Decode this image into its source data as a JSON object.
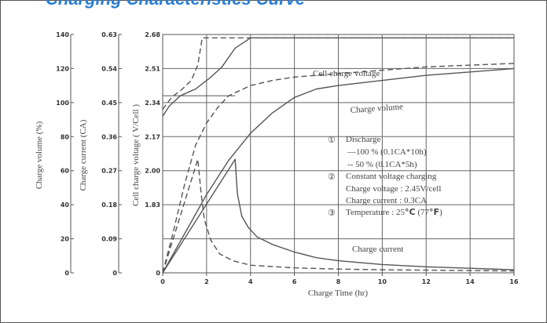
{
  "header": {
    "partial_text": "Charging Characteristics Curve"
  },
  "chart_data": {
    "type": "line",
    "xlabel": "Charge Time (hr)",
    "x_ticks": [
      "0",
      "2",
      "4",
      "6",
      "8",
      "10",
      "12",
      "14",
      "16"
    ],
    "xlim": [
      0,
      16
    ],
    "y_axes": [
      {
        "label": "Charge volume (%)",
        "ticks": [
          "140",
          "120",
          "100",
          "80",
          "60",
          "40",
          "20",
          "0"
        ]
      },
      {
        "label": "Charge current (CA)",
        "ticks": [
          "0.63",
          "0.54",
          "0.45",
          "0.36",
          "0.27",
          "0.18",
          "0.09",
          "0"
        ]
      },
      {
        "label": "Cell charge voltage ( V/Cell )",
        "ticks": [
          "2.68",
          "2.51",
          "2.34",
          "2.17",
          "2.00",
          "1.83",
          "0"
        ]
      }
    ],
    "ylim": [
      0,
      140
    ],
    "grid": true,
    "curve_labels": {
      "voltage": "Cell charge voltage",
      "volume": "Charge volume",
      "current": "Charge current"
    },
    "series": [
      {
        "name": "Cell charge voltage",
        "style": "solid",
        "x": [
          0,
          0.3,
          0.8,
          1.5,
          2.2,
          2.7,
          3.3,
          4,
          16
        ],
        "y": [
          92,
          98,
          104,
          108,
          115,
          121,
          132,
          138,
          138
        ]
      },
      {
        "name": "Cell charge voltage",
        "style": "dashed",
        "x": [
          0,
          0.4,
          0.9,
          1.3,
          1.6,
          1.8,
          16
        ],
        "y": [
          96,
          103,
          108,
          113,
          122,
          138,
          138
        ]
      },
      {
        "name": "Charge volume",
        "style": "solid",
        "x": [
          0,
          1,
          2,
          3,
          4,
          5,
          6,
          7,
          8,
          10,
          12,
          14,
          16
        ],
        "y": [
          0,
          23,
          46,
          66,
          82,
          94,
          103,
          108,
          110,
          113,
          116,
          118,
          120
        ]
      },
      {
        "name": "Charge volume",
        "style": "dashed",
        "x": [
          0,
          0.5,
          1,
          1.5,
          2,
          2.5,
          3,
          4,
          5,
          6,
          8,
          10,
          12,
          14,
          16
        ],
        "y": [
          0,
          25,
          52,
          75,
          88,
          97,
          104,
          110,
          113,
          115,
          117,
          119,
          121,
          122,
          123
        ]
      },
      {
        "name": "Charge current",
        "style": "solid",
        "x": [
          0,
          3.3,
          3.4,
          3.6,
          3.9,
          4.3,
          5,
          6,
          7,
          8,
          10,
          12,
          14,
          16
        ],
        "y": [
          0,
          0.3,
          0.21,
          0.15,
          0.12,
          0.095,
          0.075,
          0.055,
          0.04,
          0.032,
          0.022,
          0.016,
          0.012,
          0.008
        ]
      },
      {
        "name": "Charge current",
        "style": "dashed",
        "x": [
          0,
          1.6,
          1.65,
          1.75,
          1.9,
          2.2,
          2.6,
          3.2,
          4,
          6,
          8,
          10,
          12,
          14,
          16
        ],
        "y": [
          0,
          0.3,
          0.27,
          0.21,
          0.14,
          0.085,
          0.05,
          0.032,
          0.02,
          0.013,
          0.01,
          0.008,
          0.007,
          0.006,
          0.005
        ]
      }
    ],
    "annotations": {
      "n1": "①",
      "l1": "Discharge",
      "l2": "—100 % (0.1CA*10h)",
      "l3": "-- 50  % (0.1CA*5h)",
      "n2": "②",
      "l4": "Constant voltage charging",
      "l5": "Charge voltage : 2.45V/cell",
      "l6": "Charge current : 0.3CA",
      "n3": "③",
      "l7": "Temperature : 25",
      "l7_unit": "°C",
      "l7_rest": "  (77",
      "l7_unit2": "°F",
      "l7_end": ")"
    }
  }
}
